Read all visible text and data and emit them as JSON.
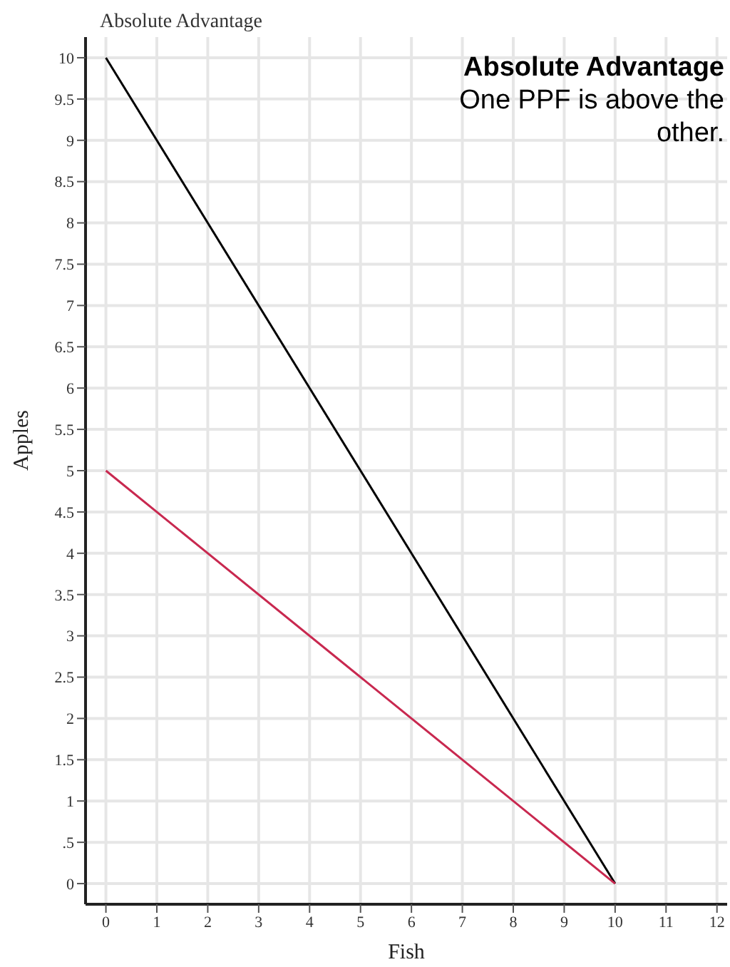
{
  "chart_data": {
    "type": "line",
    "title": "Absolute Advantage",
    "xlabel": "Fish",
    "ylabel": "Apples",
    "annotations": [
      "Absolute Advantage",
      "One PPF is above the other."
    ],
    "x": [
      0,
      10
    ],
    "series": [
      {
        "color": "#000000",
        "values": [
          10,
          0
        ]
      },
      {
        "color": "#c8284f",
        "values": [
          5,
          0
        ]
      }
    ],
    "xlim": [
      -0.4,
      12.2
    ],
    "xticks": [
      0,
      1,
      2,
      3,
      4,
      5,
      6,
      7,
      8,
      9,
      10,
      11,
      12
    ],
    "ylim": [
      -0.25,
      10.25
    ],
    "yticks": [
      0,
      {
        "value": 0.5,
        "label": ".5"
      },
      1,
      1.5,
      2,
      2.5,
      3,
      3.5,
      4,
      4.5,
      5,
      5.5,
      6,
      6.5,
      7,
      7.5,
      8,
      8.5,
      9,
      9.5,
      10
    ],
    "grid": true,
    "marker": "none",
    "line_style": "solid"
  }
}
